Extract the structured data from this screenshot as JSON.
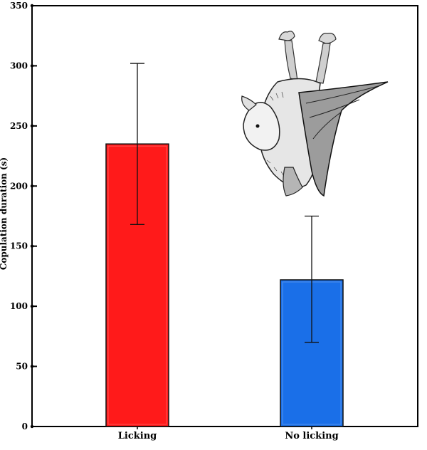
{
  "chart_data": {
    "type": "bar",
    "title": "",
    "xlabel": "",
    "ylabel": "Copulation duration (s)",
    "categories": [
      "Licking",
      "No licking"
    ],
    "values": [
      235,
      122
    ],
    "error_upper": [
      302,
      175
    ],
    "error_lower": [
      168,
      70
    ],
    "bar_colors": [
      "#ff1a1a",
      "#1a6fe8"
    ],
    "ylim": [
      0,
      350
    ],
    "yticks": [
      0,
      50,
      100,
      150,
      200,
      250,
      300,
      350
    ],
    "ytick_labels": [
      "0",
      "50",
      "100",
      "150",
      "200",
      "250",
      "300",
      "350"
    ],
    "grid": false,
    "legend": "none",
    "inset_image": "bat-illustration"
  }
}
